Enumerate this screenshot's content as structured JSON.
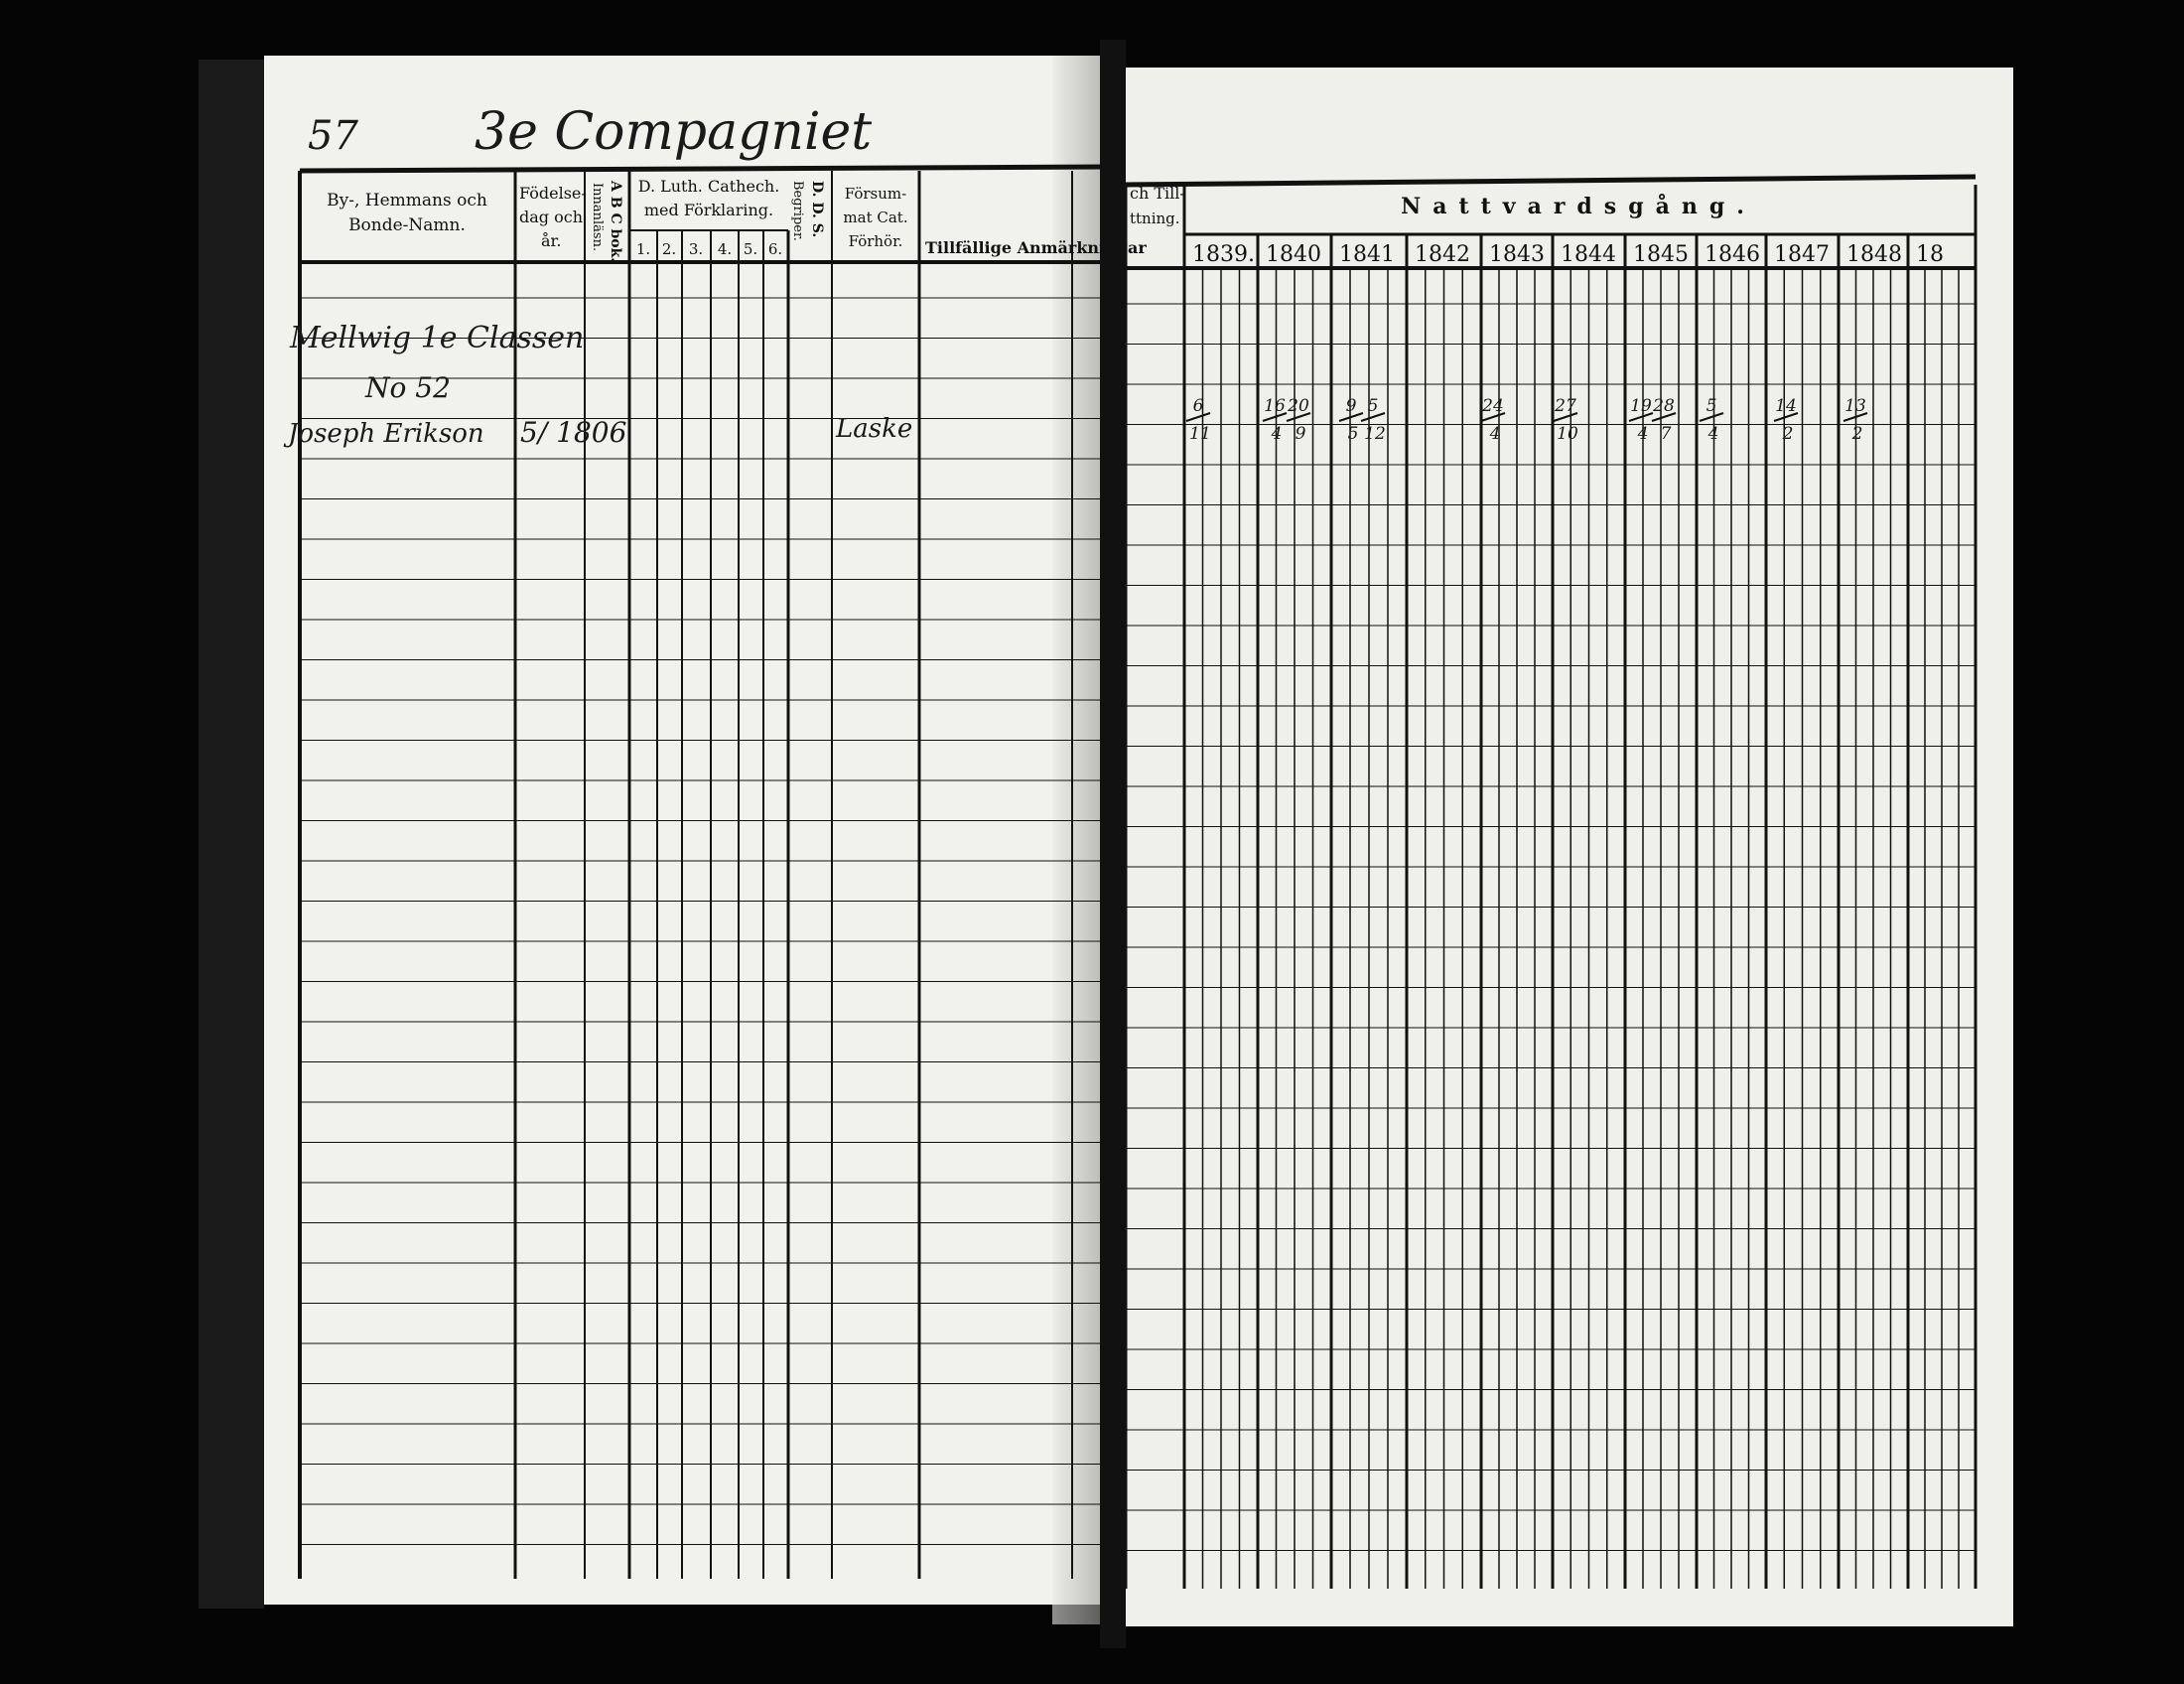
{
  "left_page": {
    "page_number": "57",
    "company_title": "3e Compagniet",
    "headers": {
      "name": [
        "By-, Hemmans och",
        "Bonde-Namn."
      ],
      "birth": [
        "Födelse-",
        "dag och",
        "år."
      ],
      "abc": "A B C bok.",
      "innanlasn": "Innanläsn.",
      "catech": [
        "D. Luth. Cathech.",
        "med Förklaring."
      ],
      "catech_parts": [
        "1.",
        "2.",
        "3.",
        "4.",
        "5.",
        "6."
      ],
      "begriper": "Begriper.",
      "dds": "D. D. S.",
      "forsummat": [
        "Försum-",
        "mat Cat.",
        "Förhör."
      ],
      "tillfallige": "Tillfällige Anmärkningar"
    },
    "entries": {
      "place": "Mellwig 1e Classen",
      "number": "No 52",
      "person_name": "Joseph Erikson",
      "birth": "5/ 1806",
      "forsummat": "Laske"
    }
  },
  "right_page": {
    "header_left": [
      "ch Till-",
      "ttning."
    ],
    "communion_title": "Nattvardsgång.",
    "years": [
      "1839.",
      "1840",
      "1841",
      "1842",
      "1843",
      "1844",
      "1845",
      "1846",
      "1847",
      "1848",
      "18"
    ],
    "communion_dates": [
      {
        "year": "1839",
        "day": "6",
        "month": "11"
      },
      {
        "year": "1840",
        "day": "16",
        "month": "4"
      },
      {
        "year": "1840",
        "day": "20",
        "month": "9"
      },
      {
        "year": "1841",
        "day": "9",
        "month": "5"
      },
      {
        "year": "1841",
        "day": "5",
        "month": "12"
      },
      {
        "year": "1843",
        "day": "24",
        "month": "4"
      },
      {
        "year": "1844",
        "day": "27",
        "month": "10"
      },
      {
        "year": "1845",
        "day": "19",
        "month": "4"
      },
      {
        "year": "1845",
        "day": "28",
        "month": "7"
      },
      {
        "year": "1846",
        "day": "5",
        "month": "4"
      },
      {
        "year": "1847",
        "day": "14",
        "month": "2"
      },
      {
        "year": "1848",
        "day": "13",
        "month": "2"
      }
    ]
  },
  "colors": {
    "paper": "#f1f1ee",
    "ink": "#111111",
    "background": "#050505"
  }
}
